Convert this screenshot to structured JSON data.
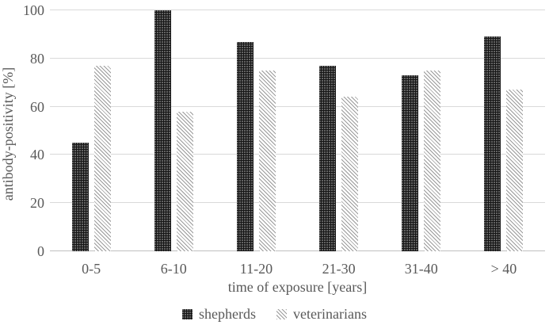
{
  "chart_data": {
    "type": "bar",
    "title": "",
    "categories": [
      "0-5",
      "6-10",
      "11-20",
      "21-30",
      "31-40",
      "> 40"
    ],
    "series": [
      {
        "name": "shepherds",
        "values": [
          45,
          100,
          87,
          77,
          73,
          89
        ],
        "pattern": "dark-dotted-checker",
        "color": "#1a1a1a"
      },
      {
        "name": "veterinarians",
        "values": [
          77,
          58,
          75,
          64,
          75,
          67
        ],
        "pattern": "light-diagonal-hatch",
        "color": "#bfbfbf"
      }
    ],
    "xlabel": "time of exposure [years]",
    "ylabel": "antibody-positivity [%]",
    "ylim": [
      0,
      100
    ],
    "yticks": [
      0,
      20,
      40,
      60,
      80,
      100
    ],
    "grid": true,
    "legend_position": "bottom",
    "colors": {
      "text": "#595959",
      "gridline": "#d9d9d9"
    }
  }
}
